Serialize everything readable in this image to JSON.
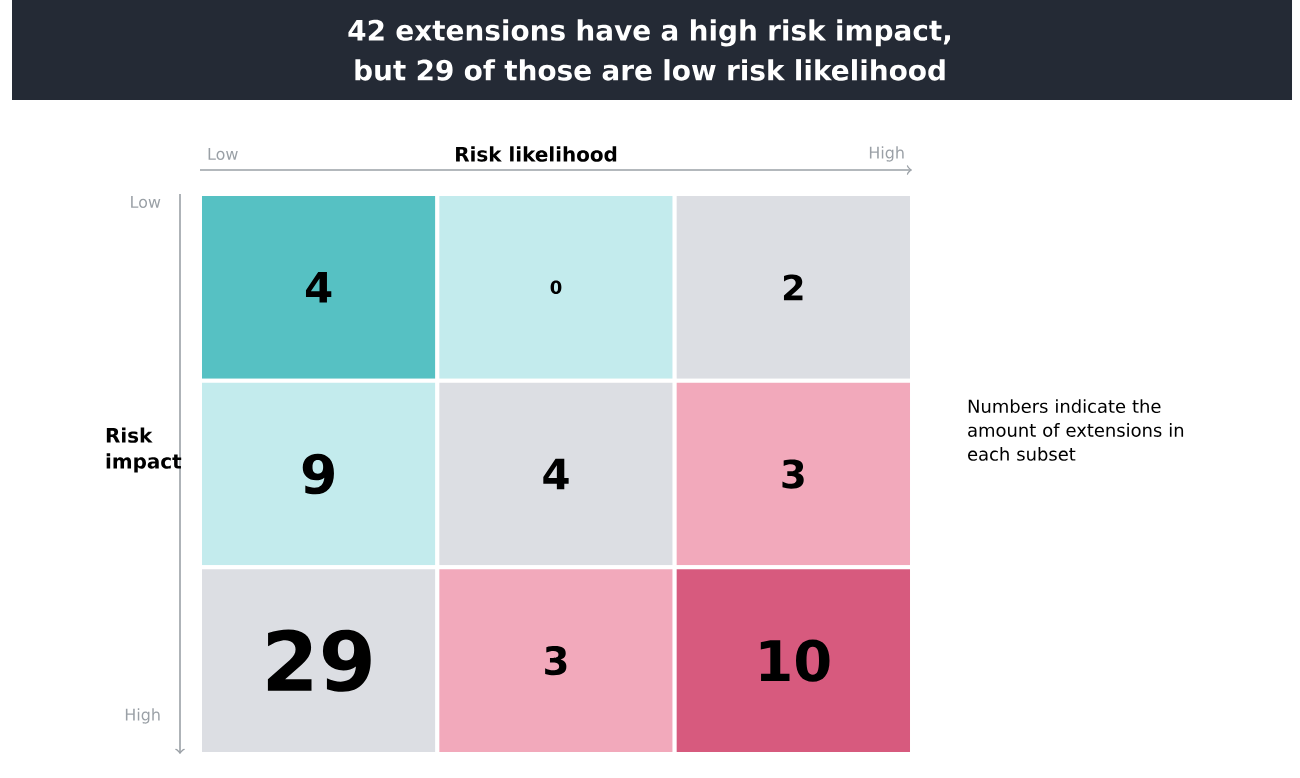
{
  "chart_data": {
    "type": "heatmap",
    "title": "42 extensions have a high risk impact, but 29 of those are low risk likelihood",
    "xlabel": "Risk likelihood",
    "ylabel": "Risk impact",
    "categories": [
      null,
      null,
      null
    ],
    "y_categories": [
      null,
      null,
      null
    ],
    "cells": [
      [
        4,
        0,
        2
      ],
      [
        9,
        4,
        3
      ],
      [
        29,
        3,
        10
      ]
    ],
    "cell_labels": [
      [
        "4",
        "0",
        "2"
      ],
      [
        "9",
        "4",
        "3"
      ],
      [
        "29",
        "3",
        "10"
      ]
    ],
    "colors": [
      [
        "#56c1c3",
        "#c3ebed",
        "#dcdee3"
      ],
      [
        "#c3ebed",
        "#dcdee3",
        "#f2a9bb"
      ],
      [
        "#dcdee3",
        "#f2a9bb",
        "#d75a7e"
      ]
    ],
    "annotations": [
      "Low",
      "High",
      "Low",
      "High",
      "Numbers indicate the amount of extensions in each subset"
    ]
  }
}
